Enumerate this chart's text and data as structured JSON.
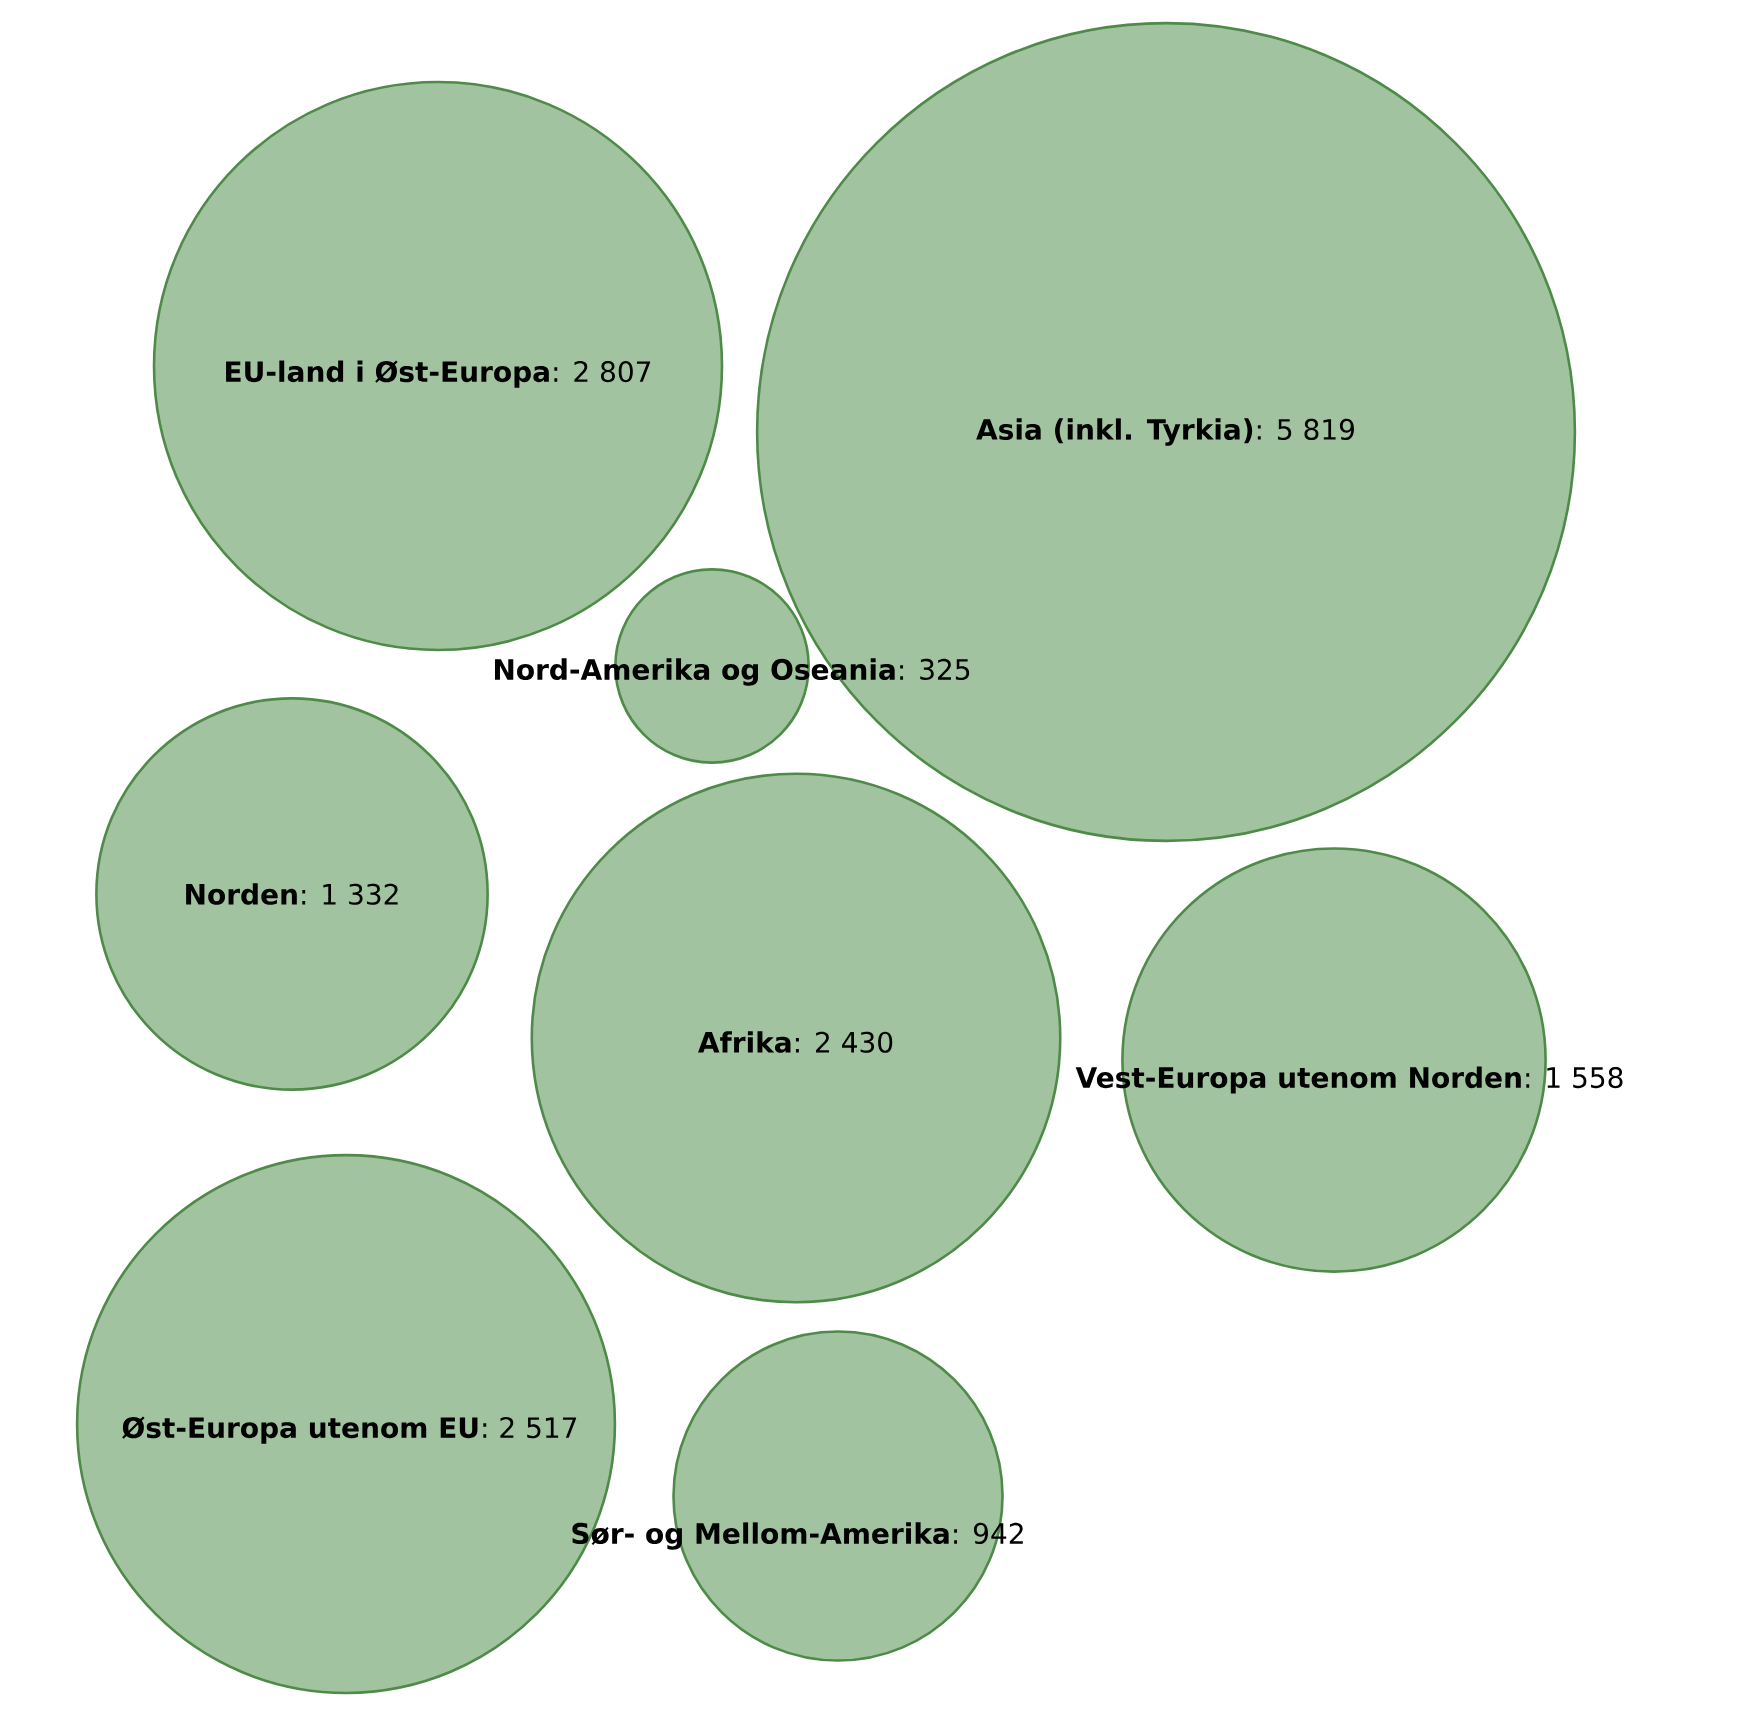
{
  "chart_data": {
    "type": "other",
    "categories": [
      "EU-land i Øst-Europa",
      "Asia (inkl. Tyrkia)",
      "Nord-Amerika og Oseania",
      "Norden",
      "Afrika",
      "Vest-Europa utenom Norden",
      "Øst-Europa utenom EU",
      "Sør- og Mellom-Amerika"
    ],
    "values": [
      2807,
      5819,
      325,
      1332,
      2430,
      1558,
      2517,
      942
    ],
    "value_labels": [
      ": 2 807",
      ": 5 819",
      ": 325",
      ": 1 332",
      ": 2 430",
      ": 1 558",
      ": 2 517",
      ": 942"
    ],
    "color": "#a2c39f"
  }
}
